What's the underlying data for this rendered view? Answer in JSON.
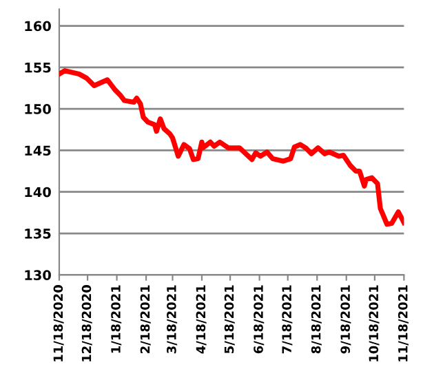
{
  "chart_data": {
    "type": "line",
    "x": [
      "2020-11-18",
      "2020-11-24",
      "2020-12-09",
      "2020-12-17",
      "2020-12-25",
      "2021-01-08",
      "2021-01-16",
      "2021-01-22",
      "2021-01-26",
      "2021-02-05",
      "2021-02-08",
      "2021-02-12",
      "2021-02-15",
      "2021-02-20",
      "2021-02-27",
      "2021-03-01",
      "2021-03-05",
      "2021-03-09",
      "2021-03-15",
      "2021-03-18",
      "2021-03-24",
      "2021-03-30",
      "2021-04-05",
      "2021-04-09",
      "2021-04-14",
      "2021-04-18",
      "2021-04-19",
      "2021-04-27",
      "2021-05-01",
      "2021-05-07",
      "2021-05-16",
      "2021-05-28",
      "2021-06-10",
      "2021-06-14",
      "2021-06-19",
      "2021-06-26",
      "2021-07-02",
      "2021-07-13",
      "2021-07-21",
      "2021-07-25",
      "2021-07-31",
      "2021-08-06",
      "2021-08-12",
      "2021-08-19",
      "2021-08-26",
      "2021-08-31",
      "2021-09-10",
      "2021-09-15",
      "2021-09-22",
      "2021-09-28",
      "2021-10-02",
      "2021-10-07",
      "2021-10-09",
      "2021-10-15",
      "2021-10-21",
      "2021-10-24",
      "2021-10-27",
      "2021-10-31",
      "2021-11-05",
      "2021-11-12",
      "2021-11-18"
    ],
    "series": [
      {
        "color": "#ff0000",
        "values": [
          154.2,
          154.6,
          154.2,
          153.7,
          152.8,
          153.5,
          152.3,
          151.6,
          151.0,
          150.8,
          151.3,
          150.6,
          149.0,
          148.4,
          148.1,
          147.3,
          148.8,
          147.6,
          147.0,
          146.5,
          144.3,
          145.7,
          145.2,
          143.9,
          144.0,
          146.0,
          145.3,
          146.0,
          145.5,
          146.0,
          145.3,
          145.3,
          143.9,
          144.7,
          144.3,
          144.8,
          144.0,
          143.7,
          144.0,
          145.4,
          145.7,
          145.3,
          144.6,
          145.3,
          144.6,
          144.8,
          144.3,
          144.4,
          143.2,
          142.5,
          142.5,
          140.7,
          141.5,
          141.7,
          141.0,
          138.0,
          137.2,
          136.1,
          136.2,
          137.6,
          136.3
        ]
      }
    ],
    "xlim": [
      "2020-11-18",
      "2021-11-18"
    ],
    "xticks": [
      {
        "value": "2020-11-18",
        "label": "11/18/2020"
      },
      {
        "value": "2020-12-18",
        "label": "12/18/2020"
      },
      {
        "value": "2021-01-18",
        "label": "1/18/2021"
      },
      {
        "value": "2021-02-18",
        "label": "2/18/2021"
      },
      {
        "value": "2021-03-18",
        "label": "3/18/2021"
      },
      {
        "value": "2021-04-18",
        "label": "4/18/2021"
      },
      {
        "value": "2021-05-18",
        "label": "5/18/2021"
      },
      {
        "value": "2021-06-18",
        "label": "6/18/2021"
      },
      {
        "value": "2021-07-18",
        "label": "7/18/2021"
      },
      {
        "value": "2021-08-18",
        "label": "8/18/2021"
      },
      {
        "value": "2021-09-18",
        "label": "9/18/2021"
      },
      {
        "value": "2021-10-18",
        "label": "10/18/2021"
      },
      {
        "value": "2021-11-18",
        "label": "11/18/2021"
      }
    ],
    "ylim": [
      130,
      162
    ],
    "yticks": [
      130,
      135,
      140,
      145,
      150,
      155,
      160
    ],
    "grid": "y",
    "marker": "none",
    "line_style": "solid"
  }
}
